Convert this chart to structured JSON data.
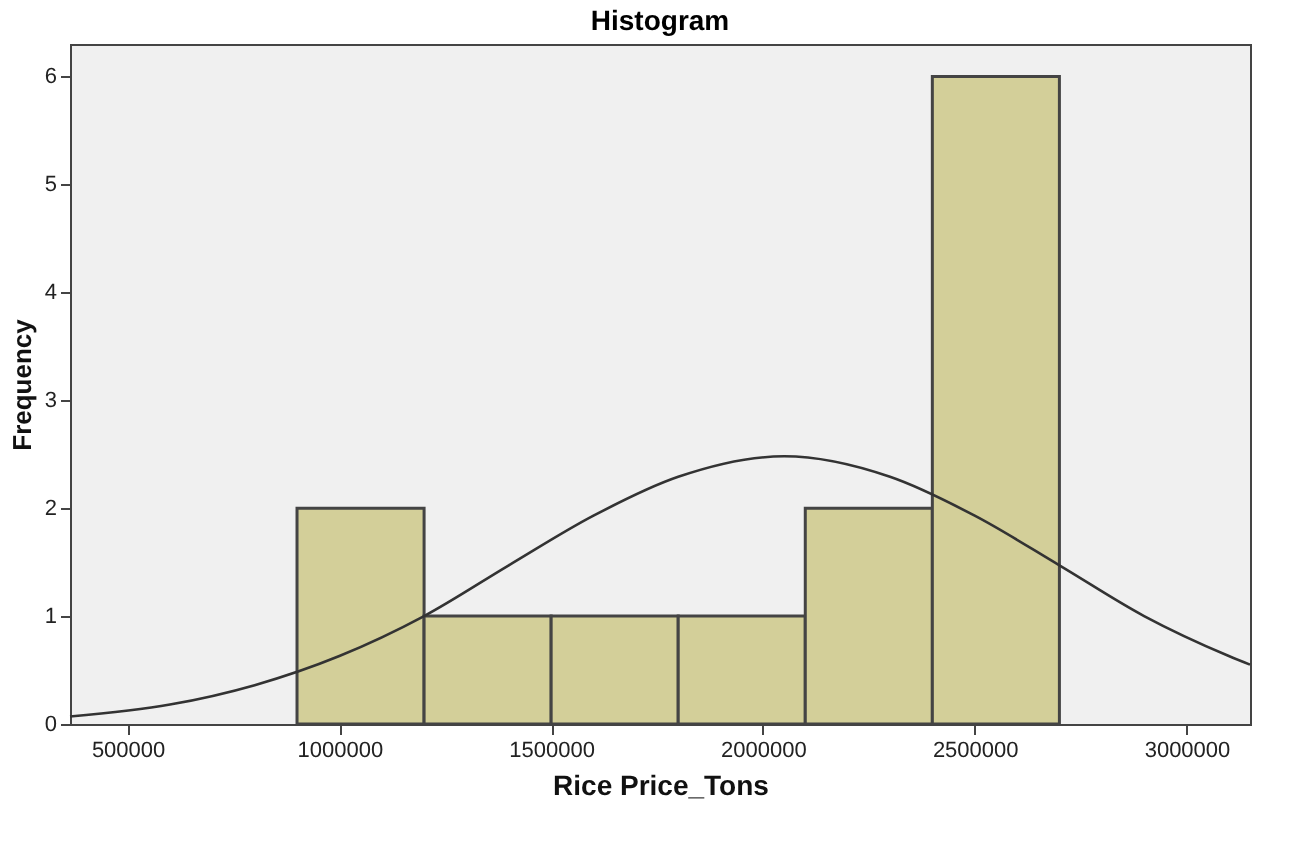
{
  "chart_data": {
    "type": "histogram",
    "title": "Histogram",
    "xlabel": "Rice Price_Tons",
    "ylabel": "Frequency",
    "bins": [
      900000,
      1200000,
      1500000,
      1800000,
      2100000,
      2400000,
      2700000
    ],
    "series": [
      {
        "color": "#d3cf99",
        "values": [
          2,
          1,
          1,
          1,
          2,
          6
        ]
      },
      {
        "type": "line",
        "color": "#333333",
        "x": [
          364000,
          600000,
          800000,
          1000000,
          1200000,
          1400000,
          1600000,
          1800000,
          2050000,
          2300000,
          2500000,
          2700000,
          2900000,
          3100000,
          3150000
        ],
        "values": [
          0.07,
          0.18,
          0.36,
          0.63,
          1.0,
          1.47,
          1.93,
          2.29,
          2.48,
          2.29,
          1.93,
          1.47,
          1.0,
          0.63,
          0.55
        ]
      }
    ],
    "xlim": [
      364000,
      3150000
    ],
    "xticks": [
      500000,
      1000000,
      1500000,
      2000000,
      2500000,
      3000000
    ],
    "ylim": [
      0,
      6.3
    ],
    "yticks": [
      0,
      1,
      2,
      3,
      4,
      5,
      6
    ],
    "grid": false
  }
}
